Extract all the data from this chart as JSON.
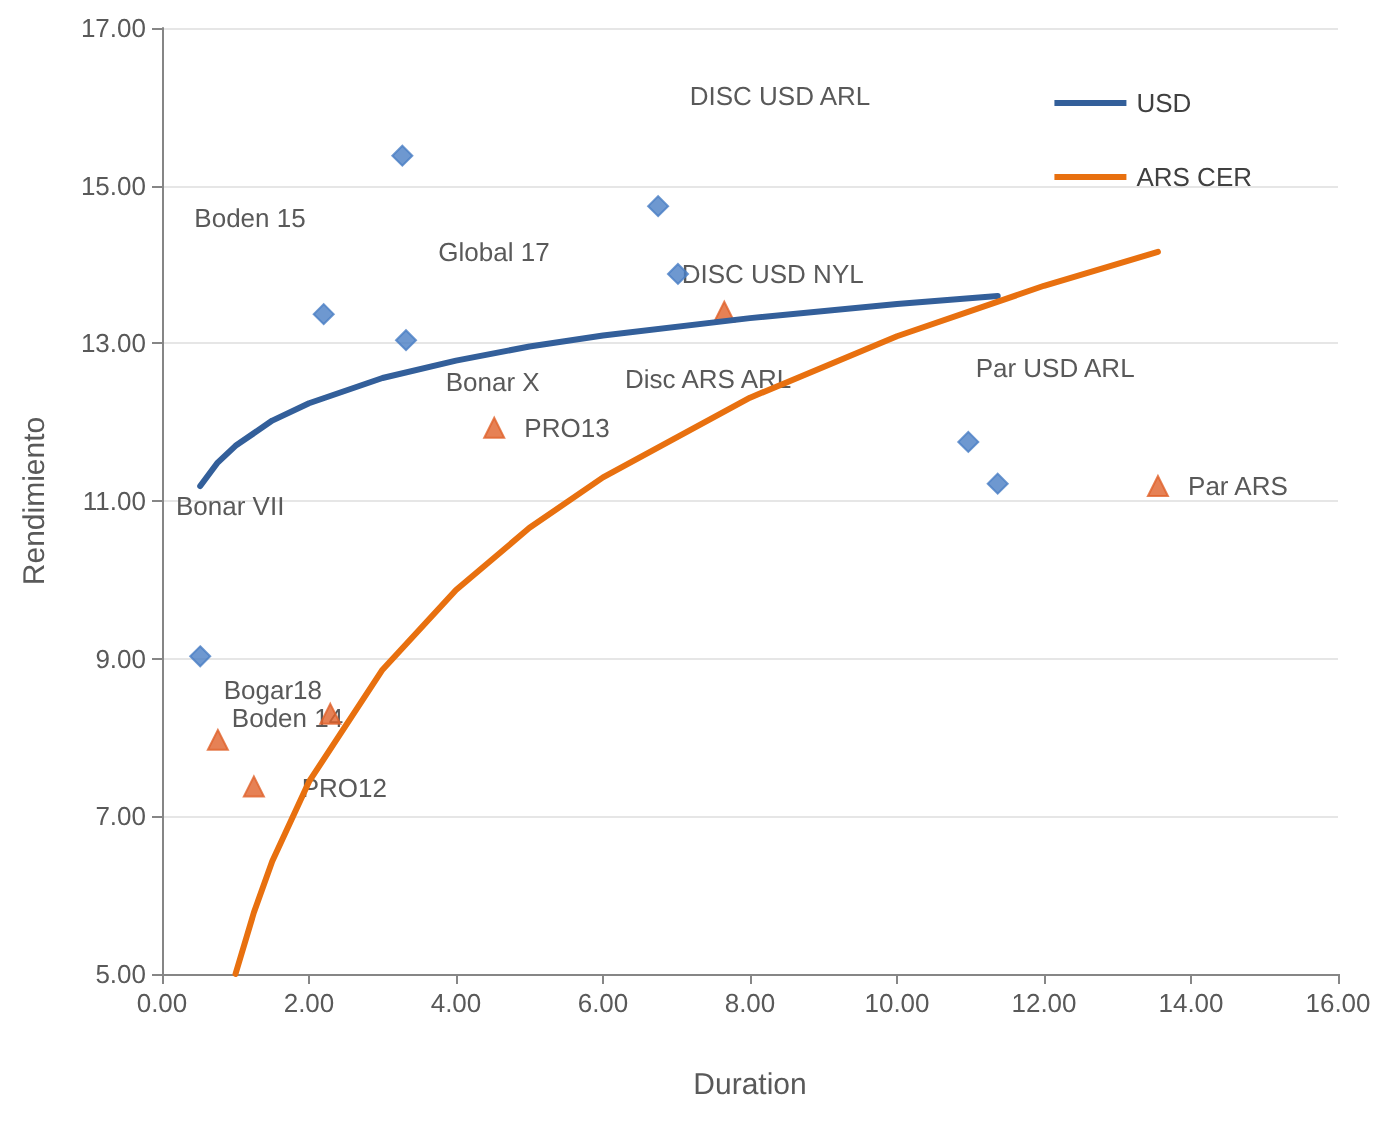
{
  "chart_data": {
    "type": "scatter",
    "xlabel": "Duration",
    "ylabel": "Rendimiento",
    "xlim": [
      0,
      16
    ],
    "ylim": [
      5,
      17
    ],
    "xticks": [
      {
        "value": 0,
        "label": "0.00"
      },
      {
        "value": 2,
        "label": "2.00"
      },
      {
        "value": 4,
        "label": "4.00"
      },
      {
        "value": 6,
        "label": "6.00"
      },
      {
        "value": 8,
        "label": "8.00"
      },
      {
        "value": 10,
        "label": "10.00"
      },
      {
        "value": 12,
        "label": "12.00"
      },
      {
        "value": 14,
        "label": "14.00"
      },
      {
        "value": 16,
        "label": "16.00"
      }
    ],
    "yticks": [
      {
        "value": 5,
        "label": "5.00"
      },
      {
        "value": 7,
        "label": "7.00"
      },
      {
        "value": 9,
        "label": "9.00"
      },
      {
        "value": 11,
        "label": "11.00"
      },
      {
        "value": 13,
        "label": "13.00"
      },
      {
        "value": 15,
        "label": "15.00"
      },
      {
        "value": 17,
        "label": "17.00"
      }
    ],
    "grid": "y",
    "legend": "top right",
    "series": [
      {
        "marker": "diamond",
        "color": "#4a7ec4",
        "x": [
          3.27,
          2.2,
          3.32,
          6.75,
          7.02,
          0.52,
          10.97,
          11.37
        ],
        "values": [
          15.38,
          13.37,
          13.04,
          14.74,
          13.88,
          9.03,
          11.75,
          11.22
        ]
      },
      {
        "marker": "triangle",
        "color": "#e0622a",
        "x": [
          4.52,
          7.65,
          13.55,
          0.76,
          1.25,
          2.29
        ],
        "values": [
          11.93,
          13.4,
          11.19,
          7.97,
          7.38,
          8.3
        ]
      },
      {
        "type": "line",
        "name": "USD",
        "color": "#335f9a",
        "x": [
          0.52,
          0.75,
          1,
          1.5,
          2,
          3,
          4,
          5,
          6,
          8,
          10,
          11.37
        ],
        "values": [
          11.19,
          11.48,
          11.7,
          12.02,
          12.24,
          12.56,
          12.78,
          12.96,
          13.1,
          13.32,
          13.5,
          13.6
        ]
      },
      {
        "type": "line",
        "name": "ARS CER",
        "color": "#e8700f",
        "x": [
          1,
          1.25,
          1.5,
          2,
          3,
          4,
          5,
          6,
          8,
          10,
          12,
          13.55
        ],
        "values": [
          5.0,
          5.78,
          6.43,
          7.44,
          8.86,
          9.87,
          10.66,
          11.3,
          12.31,
          13.09,
          13.73,
          14.16
        ]
      }
    ],
    "annotations": [
      "DISC USD ARL",
      "Boden 15",
      "Global 17",
      "DISC USD NYL",
      "Disc ARS ARL",
      "Par USD ARL",
      "Bonar X",
      "PRO13",
      "Bonar VII",
      "Par ARS",
      "Bogar18",
      "Boden 14",
      "PRO12"
    ]
  }
}
